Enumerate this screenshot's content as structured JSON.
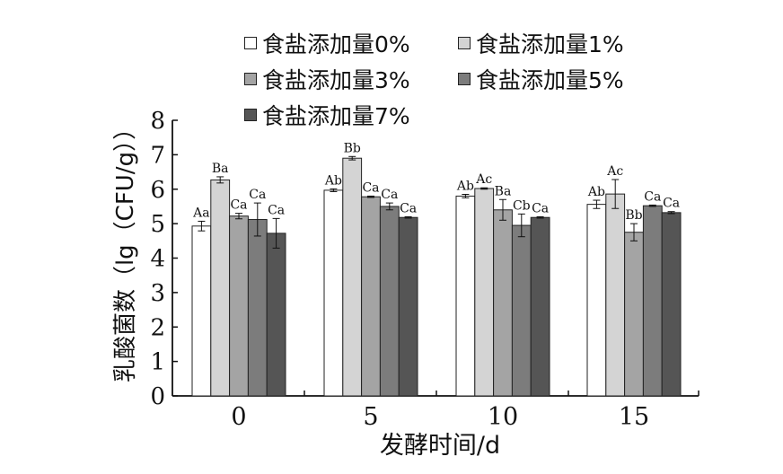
{
  "chart_data": {
    "type": "bar",
    "xlabel": "发酵时间/d",
    "ylabel": "乳酸菌数（lg（CFU/g））",
    "categories": [
      "0",
      "5",
      "10",
      "15"
    ],
    "ylim": [
      0,
      8
    ],
    "yticks": [
      "0",
      "1",
      "2",
      "3",
      "4",
      "5",
      "6",
      "7",
      "8"
    ],
    "grid": false,
    "legend_position": "top",
    "series": [
      {
        "name": "食盐添加量0%",
        "color": "#ffffff",
        "values": [
          4.93,
          5.97,
          5.8,
          5.56
        ],
        "errors": [
          0.14,
          0.04,
          0.05,
          0.12
        ],
        "labels": [
          "Aa",
          "Ab",
          "Ab",
          "Ab"
        ]
      },
      {
        "name": "食盐添加量1%",
        "color": "#d4d4d4",
        "values": [
          6.27,
          6.9,
          6.02,
          5.86
        ],
        "errors": [
          0.09,
          0.05,
          0.02,
          0.42
        ],
        "labels": [
          "Ba",
          "Bb",
          "Ac",
          "Ac"
        ]
      },
      {
        "name": "食盐添加量3%",
        "color": "#a4a4a4",
        "values": [
          5.22,
          5.78,
          5.4,
          4.75
        ],
        "errors": [
          0.08,
          0.02,
          0.3,
          0.25
        ],
        "labels": [
          "Ca",
          "Ca",
          "Ba",
          "Bb"
        ]
      },
      {
        "name": "食盐添加量5%",
        "color": "#7c7c7c",
        "values": [
          5.12,
          5.5,
          4.95,
          5.52
        ],
        "errors": [
          0.48,
          0.1,
          0.33,
          0.02
        ],
        "labels": [
          "Ca",
          "Ca",
          "Cb",
          "Ca"
        ]
      },
      {
        "name": "食盐添加量7%",
        "color": "#555555",
        "values": [
          4.72,
          5.18,
          5.18,
          5.32
        ],
        "errors": [
          0.43,
          0.02,
          0.02,
          0.03
        ],
        "labels": [
          "Ca",
          "Ca",
          "Ca",
          "Ca"
        ]
      }
    ]
  }
}
